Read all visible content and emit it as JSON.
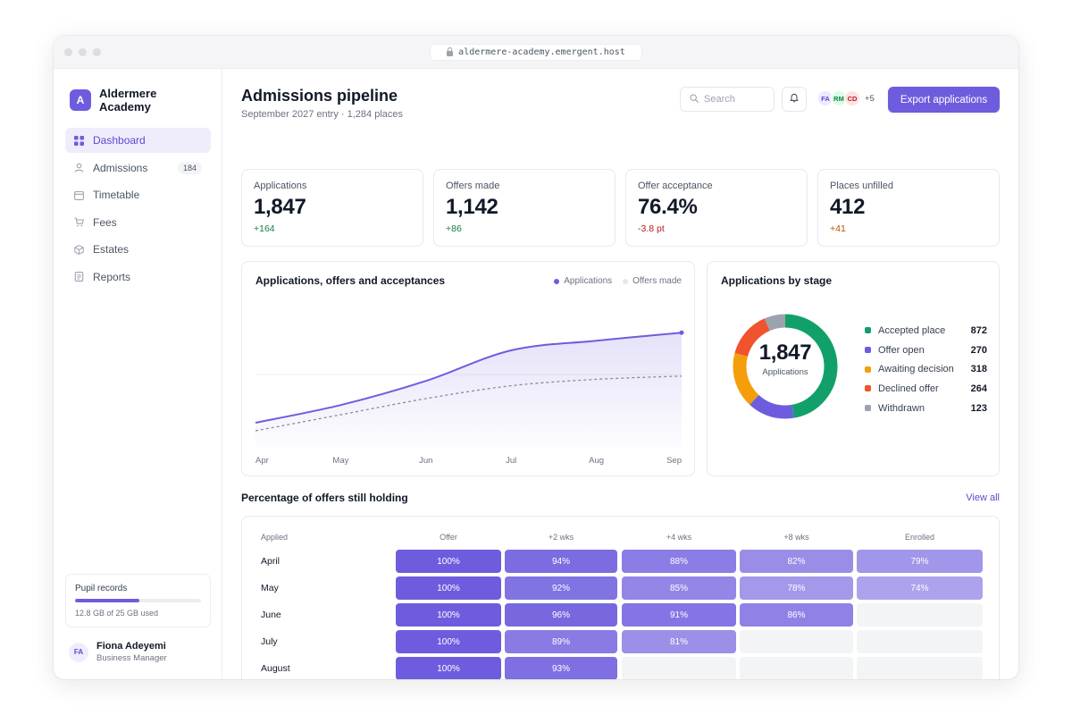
{
  "browser": {
    "url": "aldermere-academy.emergent.host"
  },
  "sidebar": {
    "brand": {
      "initial": "A",
      "name": "Aldermere Academy"
    },
    "items": [
      {
        "label": "Dashboard",
        "icon": "grid-icon",
        "active": true
      },
      {
        "label": "Admissions",
        "icon": "user-icon",
        "badge": "184"
      },
      {
        "label": "Timetable",
        "icon": "calendar-icon"
      },
      {
        "label": "Fees",
        "icon": "cart-icon"
      },
      {
        "label": "Estates",
        "icon": "box-icon"
      },
      {
        "label": "Reports",
        "icon": "document-icon"
      }
    ],
    "storage": {
      "title": "Pupil records",
      "used_fraction": 0.512,
      "text": "12.8 GB of 25 GB used"
    },
    "user": {
      "initials": "FA",
      "name": "Fiona Adeyemi",
      "role": "Business Manager"
    }
  },
  "header": {
    "title": "Admissions pipeline",
    "subtitle": "September 2027 entry · 1,284 places",
    "search_placeholder": "Search",
    "avatars": [
      {
        "initials": "FA",
        "bg": "#ede9fe",
        "fg": "#5b4ad1"
      },
      {
        "initials": "RM",
        "bg": "#dcfce7",
        "fg": "#15803d"
      },
      {
        "initials": "CD",
        "bg": "#fee2e2",
        "fg": "#b91c1c"
      }
    ],
    "avatars_more": "+5",
    "export_label": "Export applications"
  },
  "kpis": [
    {
      "label": "Applications",
      "value": "1,847",
      "delta": "+164",
      "trend": "up"
    },
    {
      "label": "Offers made",
      "value": "1,142",
      "delta": "+86",
      "trend": "up"
    },
    {
      "label": "Offer acceptance",
      "value": "76.4%",
      "delta": "-3.8 pt",
      "trend": "down"
    },
    {
      "label": "Places unfilled",
      "value": "412",
      "delta": "+41",
      "trend": "down"
    }
  ],
  "line_chart": {
    "title": "Applications, offers and acceptances",
    "chart_data": {
      "type": "area",
      "categories": [
        "Apr",
        "May",
        "Jun",
        "Jul",
        "Aug",
        "Sep"
      ],
      "series": [
        {
          "name": "Applications",
          "color": "#6d5dde",
          "values": [
            300,
            520,
            820,
            1200,
            1320,
            1420
          ]
        },
        {
          "name": "Offers made",
          "color": "#9ca3af",
          "values": [
            200,
            400,
            600,
            760,
            840,
            880
          ]
        }
      ],
      "ylim": [
        0,
        1800
      ],
      "grid": true,
      "legend": "top-right"
    }
  },
  "donut": {
    "title": "Applications by stage",
    "center_value": "1,847",
    "center_label": "Applications",
    "chart_data": {
      "type": "pie",
      "slices": [
        {
          "label": "Accepted place",
          "value": 872,
          "color": "#12a06a"
        },
        {
          "label": "Offer open",
          "value": 270,
          "color": "#6d5dde"
        },
        {
          "label": "Awaiting decision",
          "value": 318,
          "color": "#f59e0b"
        },
        {
          "label": "Declined offer",
          "value": 264,
          "color": "#f0532d"
        },
        {
          "label": "Withdrawn",
          "value": 123,
          "color": "#9ca3af"
        }
      ]
    }
  },
  "cohort": {
    "title": "Percentage of offers still holding",
    "view_all": "View all",
    "headers": [
      "Applied",
      "Offer",
      "+2 wks",
      "+4 wks",
      "+8 wks",
      "Enrolled"
    ],
    "rows": [
      {
        "label": "April",
        "values": [
          "100%",
          "94%",
          "88%",
          "82%",
          "79%"
        ]
      },
      {
        "label": "May",
        "values": [
          "100%",
          "92%",
          "85%",
          "78%",
          "74%"
        ]
      },
      {
        "label": "June",
        "values": [
          "100%",
          "96%",
          "91%",
          "86%",
          ""
        ]
      },
      {
        "label": "July",
        "values": [
          "100%",
          "89%",
          "81%",
          "",
          ""
        ]
      },
      {
        "label": "August",
        "values": [
          "100%",
          "93%",
          "",
          "",
          ""
        ]
      }
    ]
  }
}
